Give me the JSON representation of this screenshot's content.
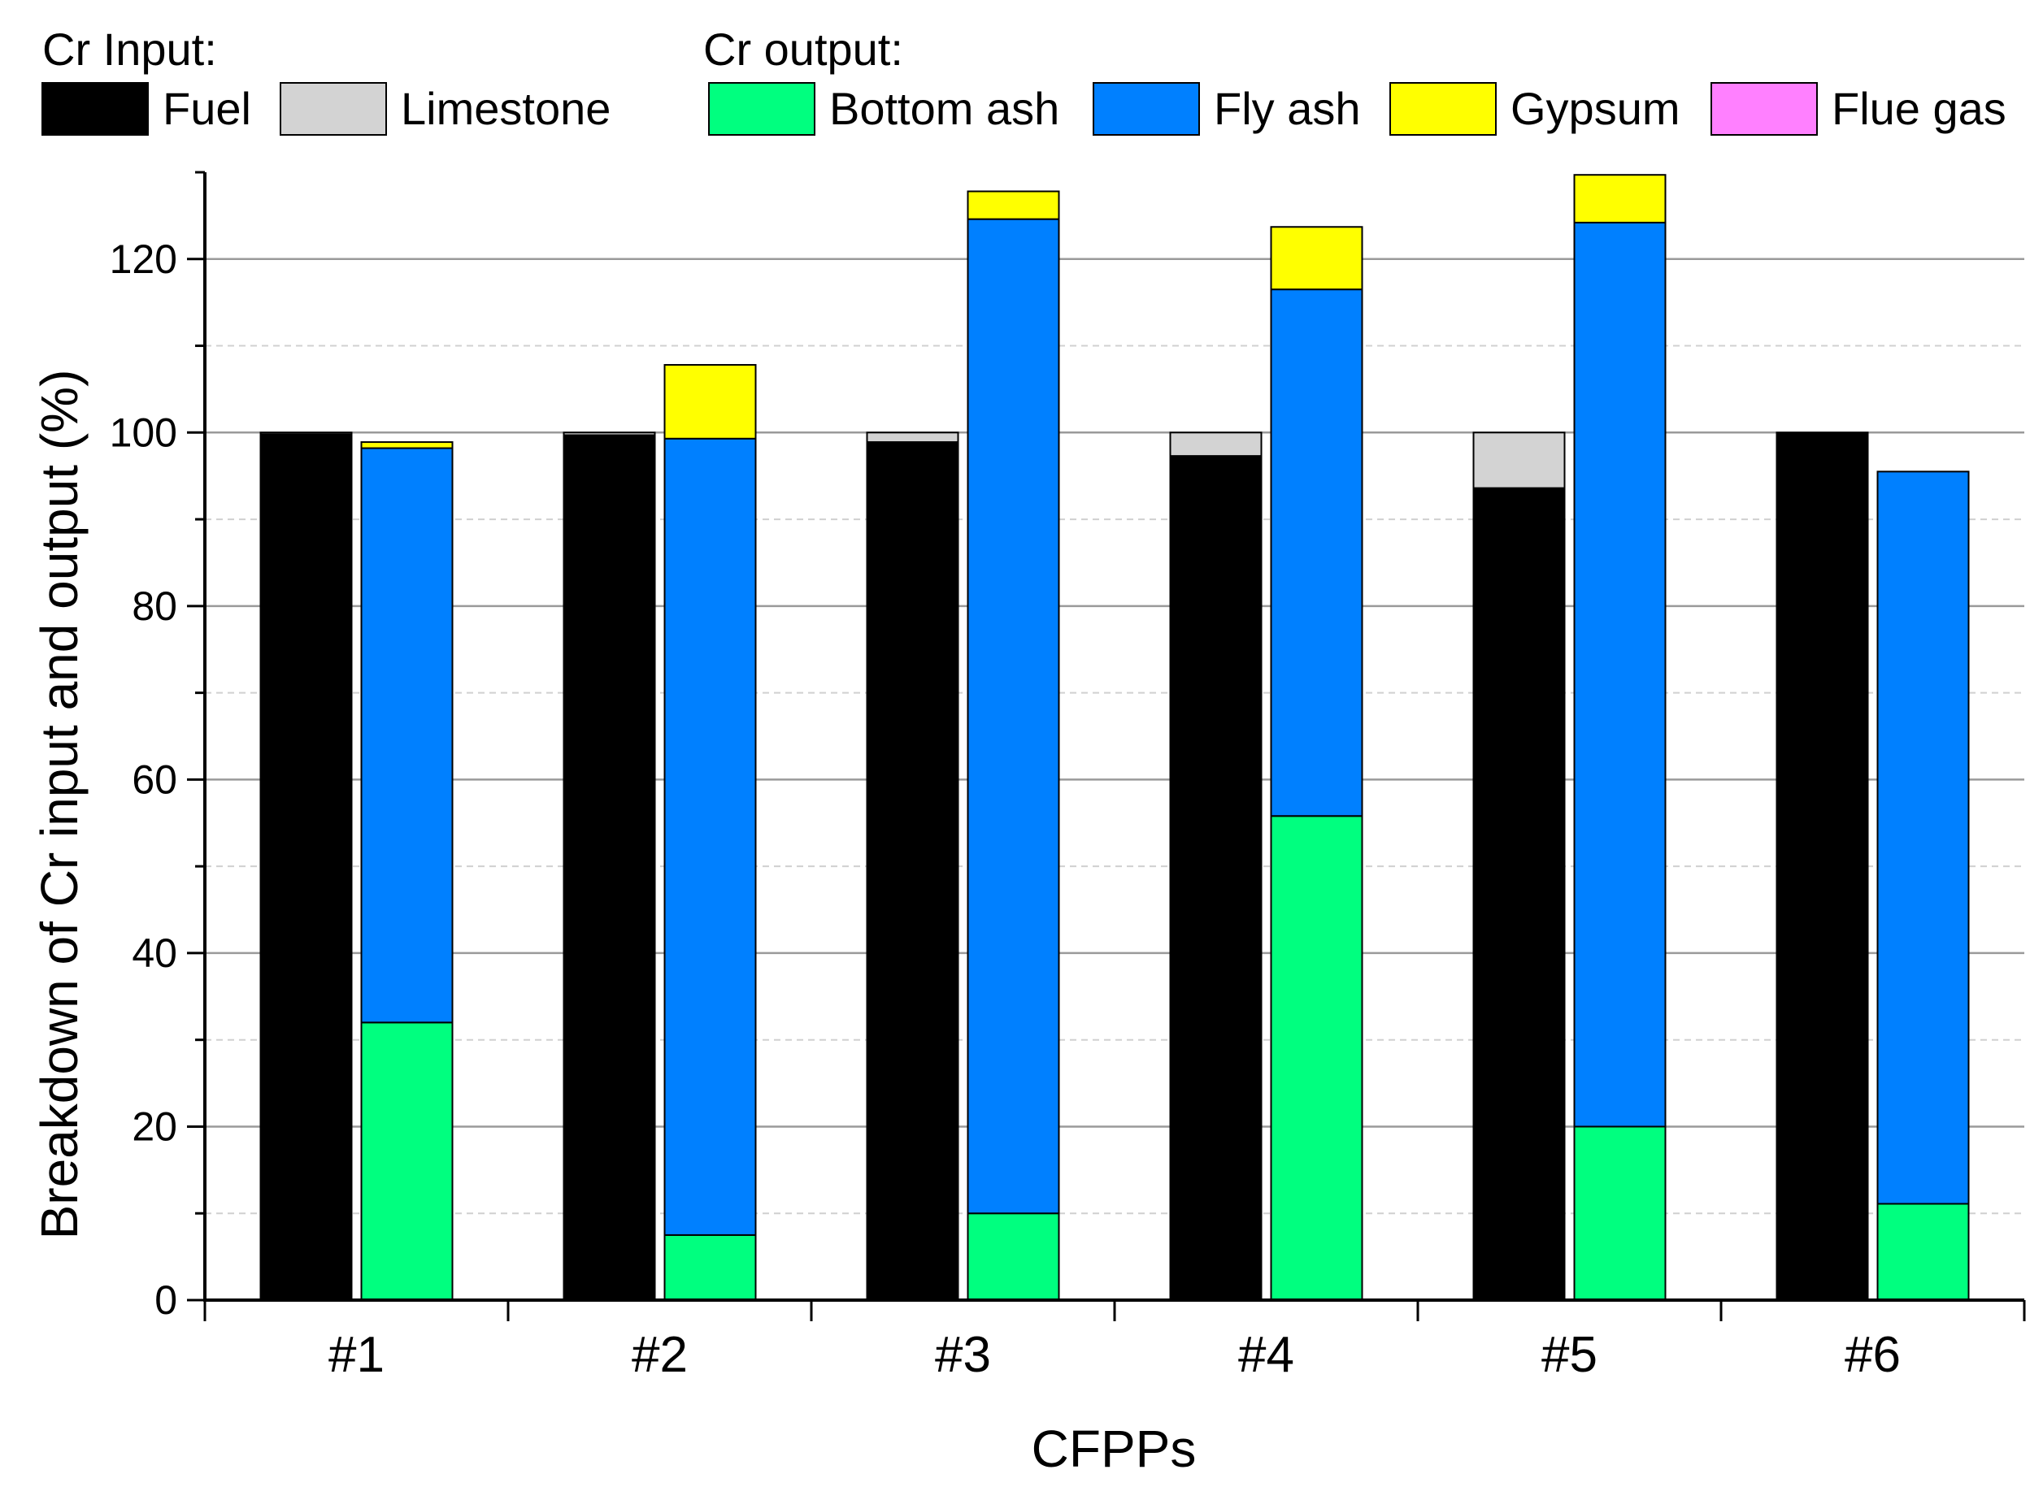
{
  "chart_data": {
    "type": "bar",
    "title": "",
    "xlabel": "CFPPs",
    "ylabel": "Breakdown of Cr input and output (%)",
    "ylim": [
      0,
      130
    ],
    "yticks": [
      0,
      20,
      40,
      60,
      80,
      100,
      120
    ],
    "categories": [
      "#1",
      "#2",
      "#3",
      "#4",
      "#5",
      "#6"
    ],
    "grid": "horizontal",
    "legend_position": "top",
    "legend_groups": [
      {
        "title": "Cr Input:",
        "entries": [
          "Fuel",
          "Limestone"
        ]
      },
      {
        "title": "Cr output:",
        "entries": [
          "Bottom ash",
          "Fly ash",
          "Gypsum",
          "Flue gas"
        ]
      }
    ],
    "input_stack": {
      "series": [
        {
          "name": "Fuel",
          "color": "#000000",
          "values": [
            99.8,
            99.7,
            98.9,
            97.3,
            93.6,
            100.0
          ]
        },
        {
          "name": "Limestone",
          "color": "#d3d3d3",
          "values": [
            0.2,
            0.3,
            1.1,
            2.7,
            6.4,
            0.0
          ]
        }
      ]
    },
    "output_stack": {
      "series": [
        {
          "name": "Bottom ash",
          "color": "#00ff7f",
          "values": [
            32.0,
            7.5,
            10.0,
            55.8,
            20.0,
            11.1
          ]
        },
        {
          "name": "Fly ash",
          "color": "#0080ff",
          "values": [
            66.2,
            91.8,
            114.6,
            60.7,
            104.2,
            84.4
          ]
        },
        {
          "name": "Gypsum",
          "color": "#ffff00",
          "values": [
            0.7,
            8.5,
            3.2,
            7.2,
            5.5,
            0.0
          ]
        },
        {
          "name": "Flue gas",
          "color": "#ff80ff",
          "values": [
            0.0,
            0.0,
            0.0,
            0.0,
            0.0,
            0.0
          ]
        }
      ]
    }
  }
}
